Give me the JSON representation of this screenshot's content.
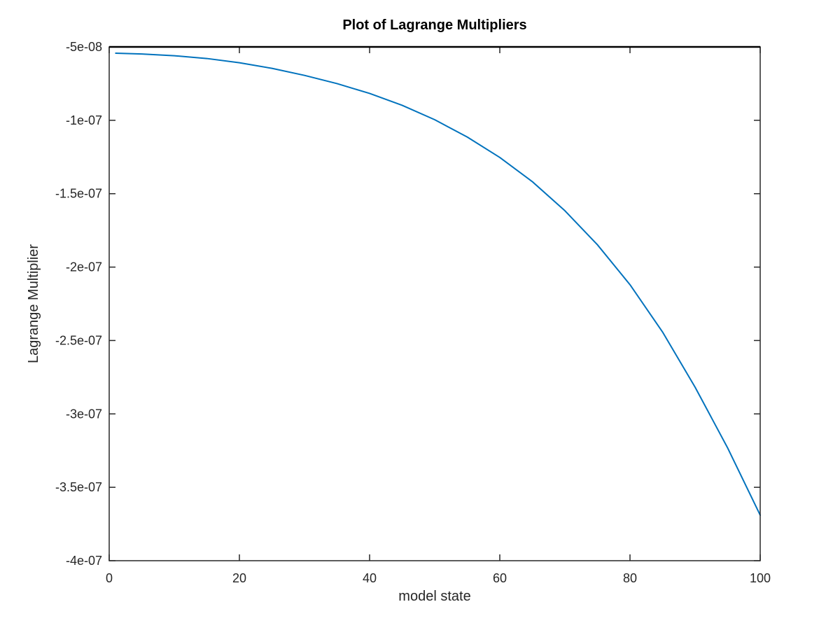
{
  "chart_data": {
    "type": "line",
    "title": "Plot of Lagrange Multipliers",
    "xlabel": "model state",
    "ylabel": "Lagrange Multiplier",
    "xlim": [
      0,
      100
    ],
    "ylim": [
      -4e-07,
      -5e-08
    ],
    "x_ticks": [
      0,
      20,
      40,
      60,
      80,
      100
    ],
    "x_tick_labels": [
      "0",
      "20",
      "40",
      "60",
      "80",
      "100"
    ],
    "y_ticks": [
      -5e-08,
      -1e-07,
      -1.5e-07,
      -2e-07,
      -2.5e-07,
      -3e-07,
      -3.5e-07,
      -4e-07
    ],
    "y_tick_labels": [
      "-5e-08",
      "-1e-07",
      "-1.5e-07",
      "-2e-07",
      "-2.5e-07",
      "-3e-07",
      "-3.5e-07",
      "-4e-07"
    ],
    "grid": false,
    "legend": "none",
    "line_color": "#0072bd",
    "series": [
      {
        "x": [
          1,
          5,
          10,
          15,
          20,
          25,
          30,
          35,
          40,
          45,
          50,
          55,
          60,
          65,
          70,
          75,
          80,
          85,
          90,
          95,
          100
        ],
        "values": [
          -5.43e-08,
          -5.48e-08,
          -5.6e-08,
          -5.79e-08,
          -6.08e-08,
          -6.46e-08,
          -6.94e-08,
          -7.5e-08,
          -8.17e-08,
          -8.98e-08,
          -9.96e-08,
          -1.114e-07,
          -1.253e-07,
          -1.418e-07,
          -1.616e-07,
          -1.848e-07,
          -2.12e-07,
          -2.442e-07,
          -2.818e-07,
          -3.232e-07,
          -3.69e-07
        ]
      }
    ]
  }
}
